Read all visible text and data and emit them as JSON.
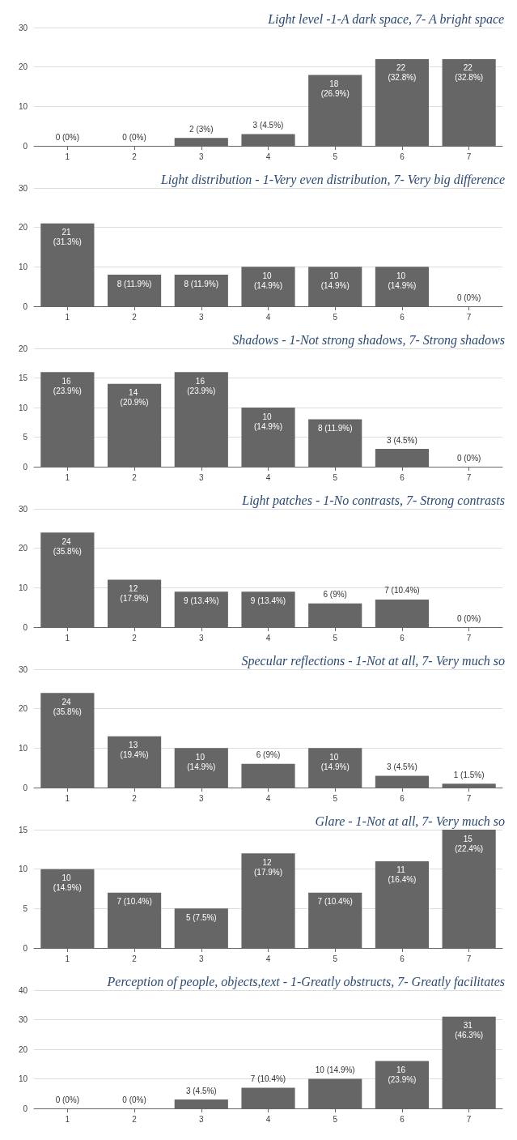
{
  "chart_data": [
    {
      "type": "bar",
      "title": "Light level -1-A dark space, 7- A bright space",
      "categories": [
        "1",
        "2",
        "3",
        "4",
        "5",
        "6",
        "7"
      ],
      "values": [
        0,
        0,
        2,
        3,
        18,
        22,
        22
      ],
      "value_labels": [
        "0 (0%)",
        "0 (0%)",
        "2 (3%)",
        "3 (4.5%)",
        "18 (26.9%)",
        "22 (32.8%)",
        "22 (32.8%)"
      ],
      "color": "#666666",
      "ylim": [
        0,
        30
      ],
      "yticks": [
        0,
        10,
        20,
        30
      ],
      "grid": "y"
    },
    {
      "type": "bar",
      "title": "Light distribution - 1-Very even distribution, 7- Very big difference",
      "categories": [
        "1",
        "2",
        "3",
        "4",
        "5",
        "6",
        "7"
      ],
      "values": [
        21,
        8,
        8,
        10,
        10,
        10,
        0
      ],
      "value_labels": [
        "21 (31.3%)",
        "8 (11.9%)",
        "8 (11.9%)",
        "10 (14.9%)",
        "10 (14.9%)",
        "10 (14.9%)",
        "0 (0%)"
      ],
      "color": "#666666",
      "ylim": [
        0,
        30
      ],
      "yticks": [
        0,
        10,
        20,
        30
      ],
      "grid": "y"
    },
    {
      "type": "bar",
      "title": "Shadows - 1-Not strong shadows, 7- Strong shadows",
      "categories": [
        "1",
        "2",
        "3",
        "4",
        "5",
        "6",
        "7"
      ],
      "values": [
        16,
        14,
        16,
        10,
        8,
        3,
        0
      ],
      "value_labels": [
        "16 (23.9%)",
        "14 (20.9%)",
        "16 (23.9%)",
        "10 (14.9%)",
        "8 (11.9%)",
        "3 (4.5%)",
        "0 (0%)"
      ],
      "color": "#666666",
      "ylim": [
        0,
        20
      ],
      "yticks": [
        0,
        5,
        10,
        15,
        20
      ],
      "grid": "y"
    },
    {
      "type": "bar",
      "title": "Light patches - 1-No contrasts, 7- Strong contrasts",
      "categories": [
        "1",
        "2",
        "3",
        "4",
        "5",
        "6",
        "7"
      ],
      "values": [
        24,
        12,
        9,
        9,
        6,
        7,
        0
      ],
      "value_labels": [
        "24 (35.8%)",
        "12 (17.9%)",
        "9 (13.4%)",
        "9 (13.4%)",
        "6 (9%)",
        "7 (10.4%)",
        "0 (0%)"
      ],
      "color": "#666666",
      "ylim": [
        0,
        30
      ],
      "yticks": [
        0,
        10,
        20,
        30
      ],
      "grid": "y"
    },
    {
      "type": "bar",
      "title": "Specular reflections - 1-Not at all, 7- Very much so",
      "categories": [
        "1",
        "2",
        "3",
        "4",
        "5",
        "6",
        "7"
      ],
      "values": [
        24,
        13,
        10,
        6,
        10,
        3,
        1
      ],
      "value_labels": [
        "24 (35.8%)",
        "13 (19.4%)",
        "10 (14.9%)",
        "6 (9%)",
        "10 (14.9%)",
        "3 (4.5%)",
        "1 (1.5%)"
      ],
      "color": "#666666",
      "ylim": [
        0,
        30
      ],
      "yticks": [
        0,
        10,
        20,
        30
      ],
      "grid": "y"
    },
    {
      "type": "bar",
      "title": "Glare - 1-Not at all, 7- Very much so",
      "categories": [
        "1",
        "2",
        "3",
        "4",
        "5",
        "6",
        "7"
      ],
      "values": [
        10,
        7,
        5,
        12,
        7,
        11,
        15
      ],
      "value_labels": [
        "10 (14.9%)",
        "7 (10.4%)",
        "5 (7.5%)",
        "12 (17.9%)",
        "7 (10.4%)",
        "11 (16.4%)",
        "15 (22.4%)"
      ],
      "color": "#666666",
      "ylim": [
        0,
        15
      ],
      "yticks": [
        0,
        5,
        10,
        15
      ],
      "grid": "y"
    },
    {
      "type": "bar",
      "title": "Perception of people, objects,text - 1-Greatly obstructs, 7- Greatly facilitates",
      "categories": [
        "1",
        "2",
        "3",
        "4",
        "5",
        "6",
        "7"
      ],
      "values": [
        0,
        0,
        3,
        7,
        10,
        16,
        31
      ],
      "value_labels": [
        "0 (0%)",
        "0 (0%)",
        "3 (4.5%)",
        "7 (10.4%)",
        "10 (14.9%)",
        "16 (23.9%)",
        "31 (46.3%)"
      ],
      "color": "#666666",
      "ylim": [
        0,
        40
      ],
      "yticks": [
        0,
        10,
        20,
        30,
        40
      ],
      "grid": "y"
    }
  ]
}
